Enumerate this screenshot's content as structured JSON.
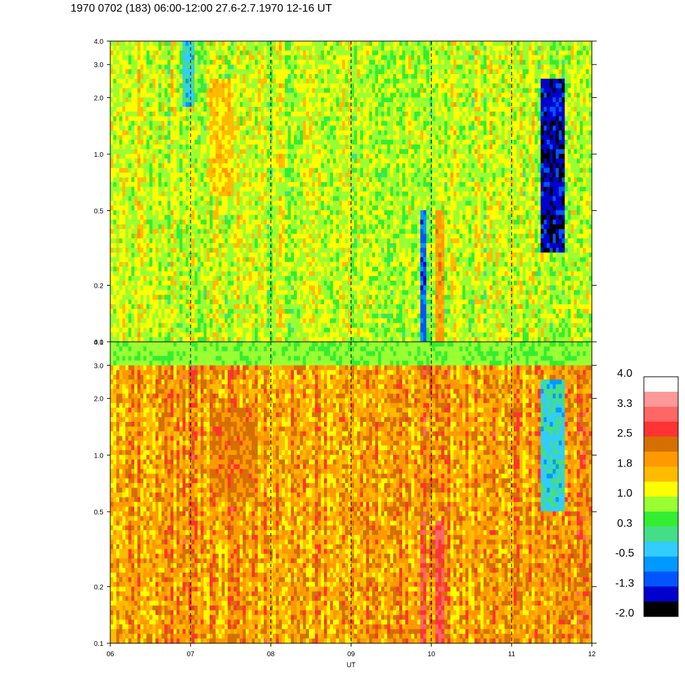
{
  "title": "1970 0702 (183) 06:00-12:00 27.6-2.7.1970  12-16 UT",
  "chart_data": [
    {
      "type": "heatmap",
      "panel": "upper",
      "x_axis": {
        "label": "UT",
        "range": [
          6,
          12
        ],
        "tick_values": [
          6,
          7,
          8,
          9,
          10,
          11,
          12
        ],
        "tick_labels": [
          "06",
          "07",
          "08",
          "09",
          "10",
          "11",
          "12"
        ]
      },
      "y_axis": {
        "scale": "log",
        "range": [
          0.1,
          4.0
        ],
        "tick_values": [
          0.1,
          0.2,
          0.5,
          1.0,
          2.0,
          3.0,
          4.0
        ],
        "tick_labels": [
          "0.1",
          "0.2",
          "0.5",
          "1.0",
          "2.0",
          "3.0",
          "4.0"
        ]
      },
      "vertical_reference_lines_dashed": [
        7,
        8,
        9,
        10,
        11
      ],
      "approx_dominant_value": 1.0,
      "features": [
        {
          "x_range": [
            11.35,
            11.65
          ],
          "y_range": [
            0.3,
            2.5
          ],
          "approx_value": -1.5
        },
        {
          "x_range": [
            9.85,
            9.95
          ],
          "y_range": [
            0.1,
            0.5
          ],
          "approx_value": -1.0
        },
        {
          "x_range": [
            10.05,
            10.15
          ],
          "y_range": [
            0.1,
            0.5
          ],
          "approx_value": 2.0
        },
        {
          "x_range": [
            7.25,
            7.55
          ],
          "y_range": [
            0.6,
            2.5
          ],
          "approx_value": 1.6
        },
        {
          "x_range": [
            6.9,
            7.05
          ],
          "y_range": [
            1.8,
            4.0
          ],
          "approx_value": -0.3
        }
      ]
    },
    {
      "type": "heatmap",
      "panel": "lower",
      "x_axis": {
        "label": "UT",
        "range": [
          6,
          12
        ],
        "tick_values": [
          6,
          7,
          8,
          9,
          10,
          11,
          12
        ],
        "tick_labels": [
          "06",
          "07",
          "08",
          "09",
          "10",
          "11",
          "12"
        ]
      },
      "y_axis": {
        "scale": "log",
        "range": [
          0.1,
          4.0
        ],
        "tick_values": [
          0.1,
          0.2,
          0.5,
          1.0,
          2.0,
          3.0,
          4.0
        ],
        "tick_labels": [
          "0.1",
          "0.2",
          "0.5",
          "1.0",
          "2.0",
          "3.0",
          "4.0"
        ]
      },
      "vertical_reference_lines_dashed": [
        7,
        8,
        9,
        10,
        11
      ],
      "approx_dominant_value": 2.0,
      "features": [
        {
          "x_range": [
            9.85,
            9.95
          ],
          "y_range": [
            0.1,
            0.45
          ],
          "approx_value": 2.9
        },
        {
          "x_range": [
            10.05,
            10.15
          ],
          "y_range": [
            0.1,
            0.45
          ],
          "approx_value": 2.9
        },
        {
          "x_range": [
            7.25,
            7.85
          ],
          "y_range": [
            0.6,
            1.8
          ],
          "approx_value": 2.3
        },
        {
          "x_range": [
            11.35,
            11.65
          ],
          "y_range": [
            0.5,
            2.5
          ],
          "approx_value": -0.3
        },
        {
          "x_range": [
            6.0,
            12.0
          ],
          "y_range": [
            3.0,
            4.0
          ],
          "approx_value": 0.6
        }
      ]
    }
  ],
  "colorbar": {
    "tick_labels": [
      "4.0",
      "3.3",
      "2.5",
      "1.8",
      "1.0",
      "0.3",
      "-0.5",
      "-1.3",
      "-2.0"
    ],
    "levels": [
      {
        "value": 3.8,
        "color": "#ffffff"
      },
      {
        "value": 3.45,
        "color": "#ff9999"
      },
      {
        "value": 3.1,
        "color": "#ff6666"
      },
      {
        "value": 2.75,
        "color": "#ff3333"
      },
      {
        "value": 2.4,
        "color": "#d47000"
      },
      {
        "value": 2.05,
        "color": "#ff9900"
      },
      {
        "value": 1.7,
        "color": "#ffbb00"
      },
      {
        "value": 1.35,
        "color": "#ffff00"
      },
      {
        "value": 0.65,
        "color": "#99ff33"
      },
      {
        "value": 0.3,
        "color": "#33ee33"
      },
      {
        "value": -0.05,
        "color": "#44dd88"
      },
      {
        "value": -0.4,
        "color": "#33ccff"
      },
      {
        "value": -0.75,
        "color": "#0099ff"
      },
      {
        "value": -1.1,
        "color": "#0055ff"
      },
      {
        "value": -1.45,
        "color": "#0000cc"
      },
      {
        "value": -1.8,
        "color": "#000000"
      }
    ]
  }
}
